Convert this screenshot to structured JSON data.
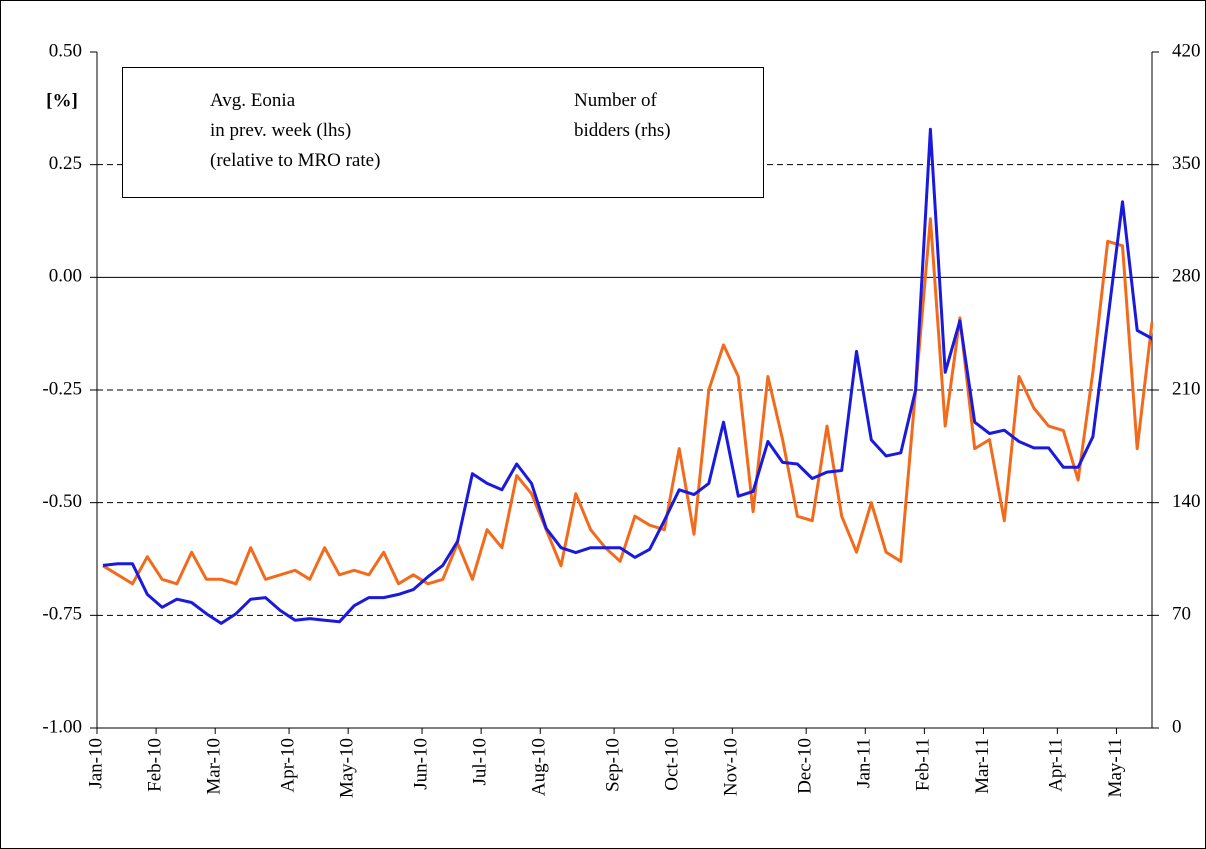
{
  "chart_data": {
    "type": "line",
    "y_label": "[%]",
    "categories": [
      "Jan-10",
      null,
      null,
      null,
      "Feb-10",
      null,
      null,
      null,
      "Mar-10",
      null,
      null,
      null,
      null,
      "Apr-10",
      null,
      null,
      null,
      "May-10",
      null,
      null,
      null,
      null,
      "Jun-10",
      null,
      null,
      null,
      "Jul-10",
      null,
      null,
      null,
      "Aug-10",
      null,
      null,
      null,
      null,
      "Sep-10",
      null,
      null,
      null,
      "Oct-10",
      null,
      null,
      null,
      "Nov-10",
      null,
      null,
      null,
      null,
      "Dec-10",
      null,
      null,
      null,
      "Jan-11",
      null,
      null,
      null,
      "Feb-11",
      null,
      null,
      null,
      "Mar-11",
      null,
      null,
      null,
      null,
      "Apr-11",
      null,
      null,
      null,
      "May-11",
      null,
      null
    ],
    "series": [
      {
        "name": "Avg. Eonia\nin prev. week (lhs)\n(relative to MRO rate)",
        "color": "#f26b1d",
        "values": [
          -0.64,
          -0.66,
          -0.68,
          -0.62,
          -0.67,
          -0.68,
          -0.61,
          -0.67,
          -0.67,
          -0.68,
          -0.6,
          -0.67,
          -0.66,
          -0.65,
          -0.67,
          -0.6,
          -0.66,
          -0.65,
          -0.66,
          -0.61,
          -0.68,
          -0.66,
          -0.68,
          -0.67,
          -0.59,
          -0.67,
          -0.56,
          -0.6,
          -0.44,
          -0.48,
          -0.56,
          -0.64,
          -0.48,
          -0.56,
          -0.6,
          -0.63,
          -0.53,
          -0.55,
          -0.56,
          -0.38,
          -0.57,
          -0.25,
          -0.15,
          -0.22,
          -0.52,
          -0.22,
          -0.36,
          -0.53,
          -0.54,
          -0.33,
          -0.53,
          -0.61,
          -0.5,
          -0.61,
          -0.63,
          -0.25,
          0.13,
          -0.33,
          -0.09,
          -0.38,
          -0.36,
          -0.54,
          -0.22,
          -0.29,
          -0.33,
          -0.34,
          -0.45,
          -0.21,
          0.08,
          0.07,
          -0.38,
          -0.1
        ]
      },
      {
        "name": "Number of\nbidders (rhs)",
        "color": "#1a1adc",
        "axis": "y2",
        "values": [
          101,
          102,
          102,
          83,
          75,
          80,
          78,
          71,
          65,
          71,
          80,
          81,
          73,
          67,
          68,
          67,
          66,
          76,
          81,
          81,
          83,
          86,
          94,
          101,
          116,
          158,
          152,
          148,
          164,
          152,
          124,
          112,
          109,
          112,
          112,
          112,
          106,
          111,
          129,
          148,
          145,
          152,
          190,
          144,
          147,
          178,
          165,
          164,
          155,
          159,
          160,
          234,
          179,
          169,
          171,
          210,
          372,
          221,
          253,
          190,
          183,
          185,
          178,
          174,
          174,
          162,
          162,
          181,
          253,
          327,
          247,
          242
        ]
      }
    ],
    "ylim": [
      -1.0,
      0.5
    ],
    "yticks": [
      {
        "value": -1.0,
        "label": "-1.00"
      },
      {
        "value": -0.75,
        "label": "-0.75"
      },
      {
        "value": -0.5,
        "label": "-0.50"
      },
      {
        "value": -0.25,
        "label": "-0.25"
      },
      {
        "value": 0.0,
        "label": "0.00"
      },
      {
        "value": 0.25,
        "label": "0.25"
      },
      {
        "value": 0.5,
        "label": "0.50"
      }
    ],
    "y2lim": [
      0,
      420
    ],
    "y2ticks": [
      0,
      70,
      140,
      210,
      280,
      350,
      420
    ],
    "grid": true,
    "legend": "top-left"
  }
}
